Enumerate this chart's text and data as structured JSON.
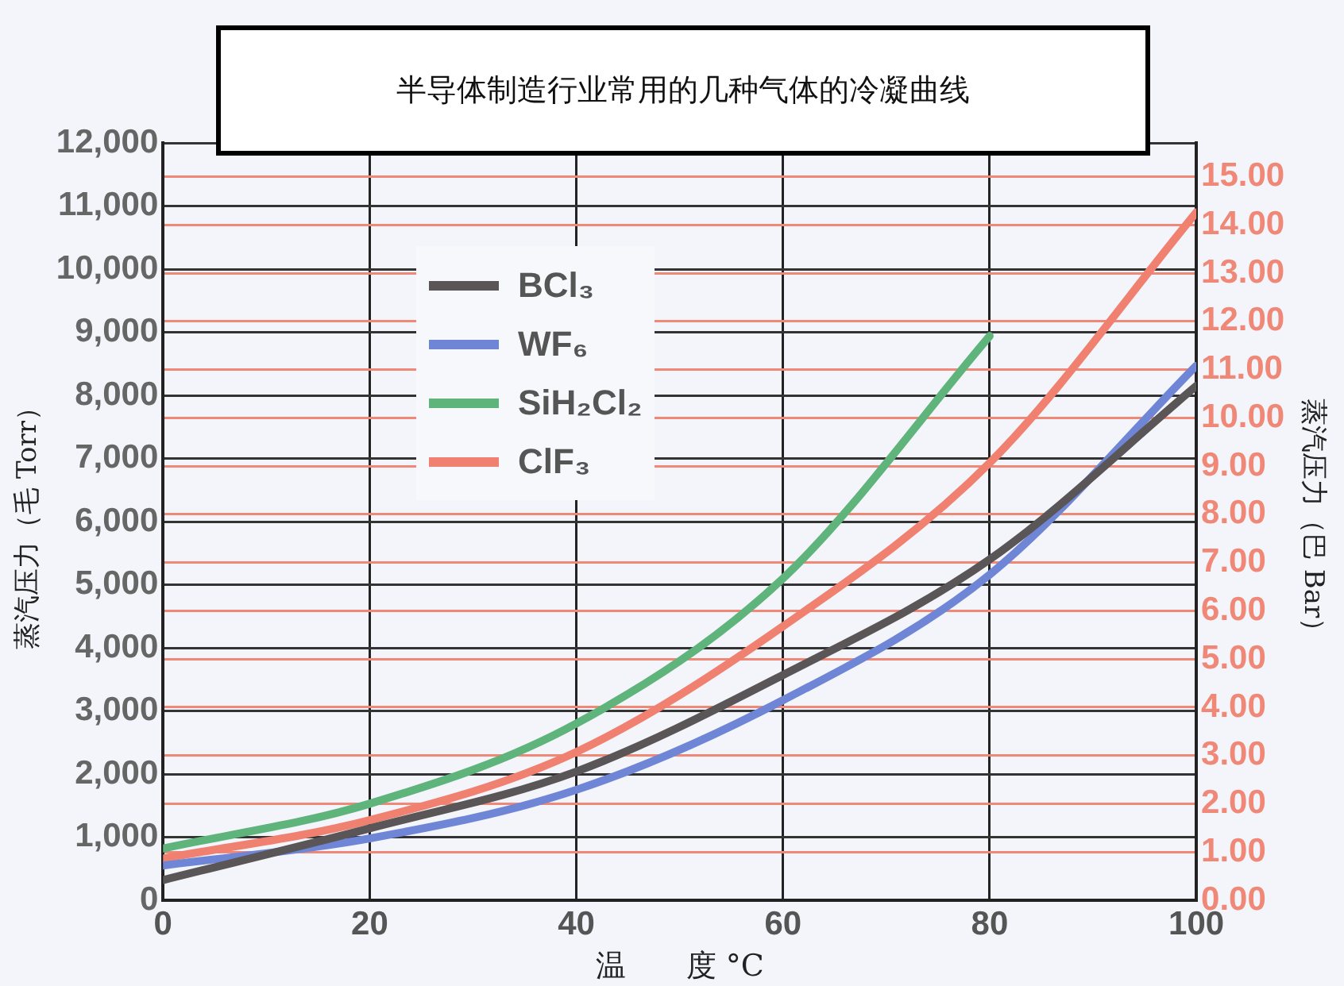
{
  "chart_data": {
    "type": "line",
    "title": "半导体制造行业常用的几种气体的冷凝曲线",
    "xlabel": "温　　度 °C",
    "ylabel": "蒸汽压力（毛 Torr）",
    "y2label": "蒸汽压力（巴 Bar）",
    "x": [
      0,
      20,
      40,
      60,
      80,
      100
    ],
    "series": [
      {
        "name": "BCl₃",
        "color": "#5a5556",
        "values": [
          320,
          1140,
          2040,
          3570,
          5400,
          8150
        ]
      },
      {
        "name": "WF₆",
        "color": "#6f86d6",
        "values": [
          550,
          980,
          1750,
          3170,
          5160,
          8470
        ]
      },
      {
        "name": "SiH₂Cl₂",
        "color": "#5fb47c",
        "values": [
          820,
          1530,
          2800,
          5100,
          8940,
          null
        ]
      },
      {
        "name": "ClF₃",
        "color": "#f08070",
        "values": [
          660,
          1270,
          2350,
          4340,
          6930,
          10900
        ]
      }
    ],
    "xlim": [
      0,
      100
    ],
    "xticks": [
      0,
      20,
      40,
      60,
      80,
      100
    ],
    "ylim": [
      0,
      12000
    ],
    "yticks": [
      0,
      {
        "value": 1000,
        "label": "1,000"
      },
      {
        "value": 2000,
        "label": "2,000"
      },
      {
        "value": 3000,
        "label": "3,000"
      },
      {
        "value": 4000,
        "label": "4,000"
      },
      {
        "value": 5000,
        "label": "5,000"
      },
      {
        "value": 6000,
        "label": "6,000"
      },
      {
        "value": 7000,
        "label": "7,000"
      },
      {
        "value": 8000,
        "label": "8,000"
      },
      {
        "value": 9000,
        "label": "9,000"
      },
      {
        "value": 10000,
        "label": "10,000"
      },
      {
        "value": 11000,
        "label": "11,000"
      },
      {
        "value": 12000,
        "label": "12,000"
      }
    ],
    "y2lim": [
      0,
      15.7
    ],
    "y2ticks": [
      {
        "value": 0,
        "label": "0.00"
      },
      {
        "value": 1,
        "label": "1.00"
      },
      {
        "value": 2,
        "label": "2.00"
      },
      {
        "value": 3,
        "label": "3.00"
      },
      {
        "value": 4,
        "label": "4.00"
      },
      {
        "value": 5,
        "label": "5.00"
      },
      {
        "value": 6,
        "label": "6.00"
      },
      {
        "value": 7,
        "label": "7.00"
      },
      {
        "value": 8,
        "label": "8.00"
      },
      {
        "value": 9,
        "label": "9.00"
      },
      {
        "value": 10,
        "label": "10.00"
      },
      {
        "value": 11,
        "label": "11.00"
      },
      {
        "value": 12,
        "label": "12.00"
      },
      {
        "value": 13,
        "label": "13.00"
      },
      {
        "value": 14,
        "label": "14.00"
      },
      {
        "value": 15,
        "label": "15.00"
      }
    ],
    "grid": true,
    "legend": "top left",
    "marker": "none",
    "line_style": "solid"
  }
}
